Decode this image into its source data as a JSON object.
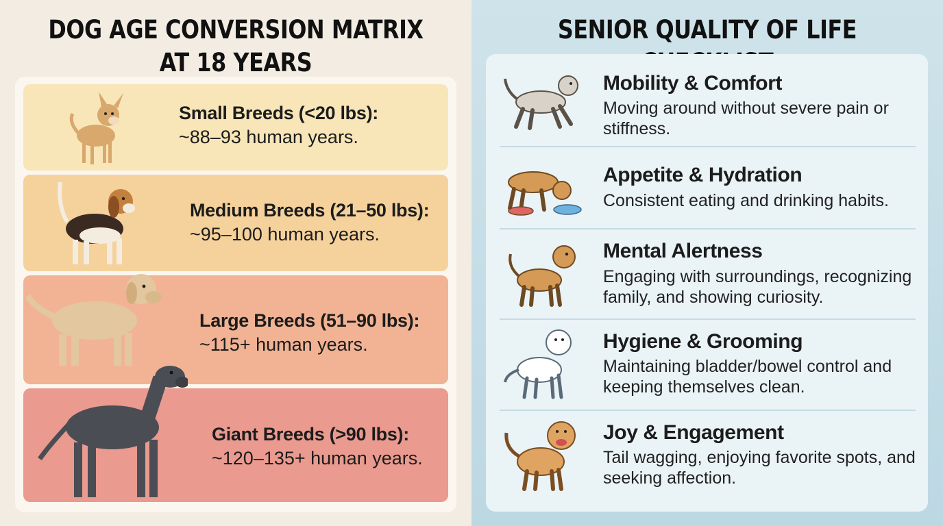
{
  "left": {
    "title_line1": "DOG AGE CONVERSION MATRIX",
    "title_line2": "AT 18 YEARS",
    "breeds": [
      {
        "label": "Small Breeds (<20 lbs):",
        "value": "~88–93 human years.",
        "icon": "chihuahua-icon"
      },
      {
        "label": "Medium Breeds (21–50 lbs):",
        "value": "~95–100 human years.",
        "icon": "beagle-icon"
      },
      {
        "label": "Large Breeds (51–90 lbs):",
        "value": "~115+ human years.",
        "icon": "labrador-icon"
      },
      {
        "label": "Giant Breeds (>90 lbs):",
        "value": "~120–135+ human years.",
        "icon": "great-dane-icon"
      }
    ]
  },
  "right": {
    "title": "SENIOR QUALITY OF LIFE CHECKLIST",
    "items": [
      {
        "title": "Mobility & Comfort",
        "desc": "Moving around without severe pain or stiffness.",
        "icon": "walking-dog-icon"
      },
      {
        "title": "Appetite & Hydration",
        "desc": "Consistent eating and drinking habits.",
        "icon": "eating-dog-icon"
      },
      {
        "title": "Mental Alertness",
        "desc": "Engaging with surroundings, recognizing family, and showing curiosity.",
        "icon": "alert-dog-icon"
      },
      {
        "title": "Hygiene & Grooming",
        "desc": "Maintaining bladder/bowel control and keeping themselves clean.",
        "icon": "clean-dog-icon"
      },
      {
        "title": "Joy & Engagement",
        "desc": "Tail wagging, enjoying favorite spots, and seeking affection.",
        "icon": "happy-dog-icon"
      }
    ]
  },
  "colors": {
    "small": "#f8e6b8",
    "medium": "#f5d29c",
    "large": "#f1b394",
    "giant": "#ea9a8f",
    "checklist_bg": "#eaf3f6"
  }
}
